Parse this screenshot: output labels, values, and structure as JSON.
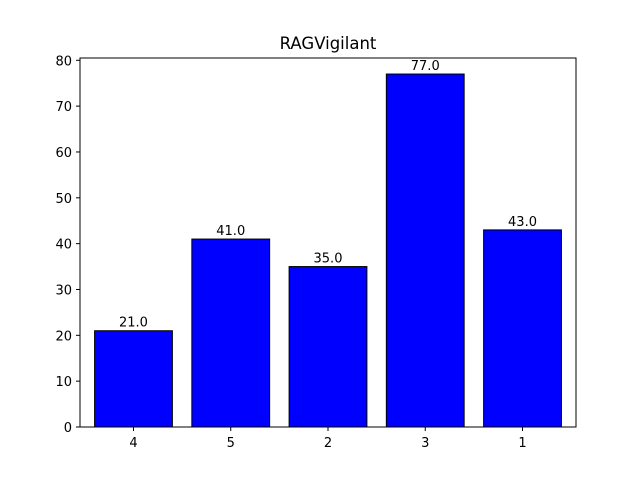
{
  "chart_data": {
    "type": "bar",
    "title": "RAGVigilant",
    "xlabel": "",
    "ylabel": "",
    "categories": [
      "4",
      "5",
      "2",
      "3",
      "1"
    ],
    "values": [
      21.0,
      41.0,
      35.0,
      77.0,
      43.0
    ],
    "data_labels": [
      "21.0",
      "41.0",
      "35.0",
      "77.0",
      "43.0"
    ],
    "ylim": [
      0,
      80.5
    ],
    "yticks": [
      0,
      10,
      20,
      30,
      40,
      50,
      60,
      70,
      80
    ],
    "ytick_labels": [
      "0",
      "10",
      "20",
      "30",
      "40",
      "50",
      "60",
      "70",
      "80"
    ],
    "grid": false,
    "legend": "none",
    "colors": {
      "bar_fill": "#0000ff",
      "bar_edge": "#000000",
      "axes": "#000000",
      "background": "#ffffff"
    }
  }
}
